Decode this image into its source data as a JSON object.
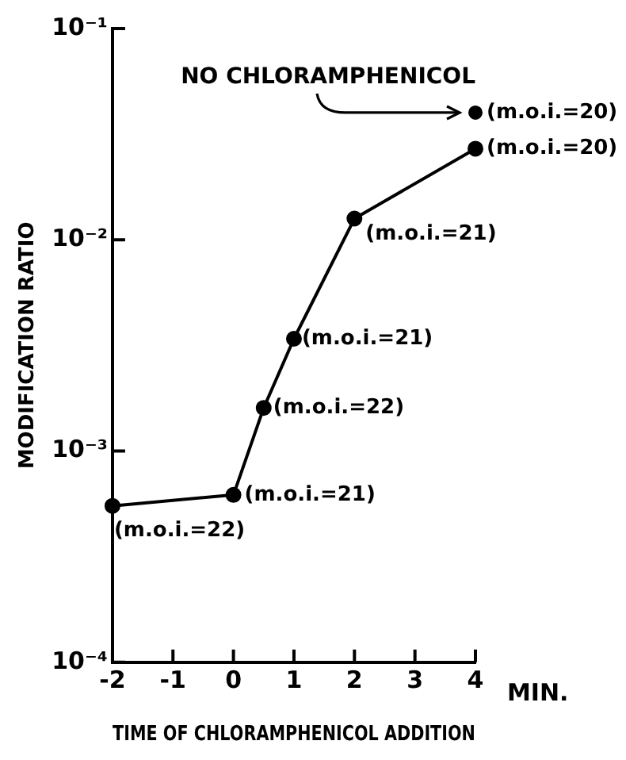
{
  "chart_data": {
    "type": "line",
    "xlabel": "TIME OF CHLORAMPHENICOL ADDITION",
    "ylabel": "MODIFICATION RATIO",
    "xlim": [
      -2,
      4
    ],
    "xticks": [
      -2,
      -1,
      0,
      1,
      2,
      3,
      4
    ],
    "ylim": [
      0.0001,
      0.1
    ],
    "yticks": [
      {
        "value": 0.0001,
        "label": "10⁻⁴"
      },
      {
        "value": 0.001,
        "label": "10⁻³"
      },
      {
        "value": 0.01,
        "label": "10⁻²"
      },
      {
        "value": 0.1,
        "label": "10⁻¹"
      }
    ],
    "log": "y",
    "grid": false,
    "legend": false,
    "marker": "circle",
    "line_style": "solid",
    "series": [
      {
        "color": "#000000",
        "x": [
          -2,
          0,
          0.5,
          1,
          2,
          4
        ],
        "values": [
          0.00055,
          0.00062,
          0.0016,
          0.0034,
          0.0126,
          0.027
        ]
      },
      {
        "type": "scatter",
        "color": "#000000",
        "x": [
          4
        ],
        "values": [
          0.04
        ]
      }
    ],
    "annotations": [
      {
        "text": "NO CHLORAMPHENICOL",
        "x": 4,
        "y": 0.04
      },
      {
        "text": "(m.o.i.=20)",
        "x": 4,
        "y": 0.04
      },
      {
        "text": "(m.o.i.=20)",
        "x": 4,
        "y": 0.027
      },
      {
        "text": "(m.o.i.=21)",
        "x": 2,
        "y": 0.0126
      },
      {
        "text": "(m.o.i.=21)",
        "x": 1,
        "y": 0.0034
      },
      {
        "text": "(m.o.i.=22)",
        "x": 0.5,
        "y": 0.0016
      },
      {
        "text": "(m.o.i.=21)",
        "x": 0,
        "y": 0.00062
      },
      {
        "text": "(m.o.i.=22)",
        "x": -2,
        "y": 0.00055
      },
      "MIN."
    ]
  }
}
